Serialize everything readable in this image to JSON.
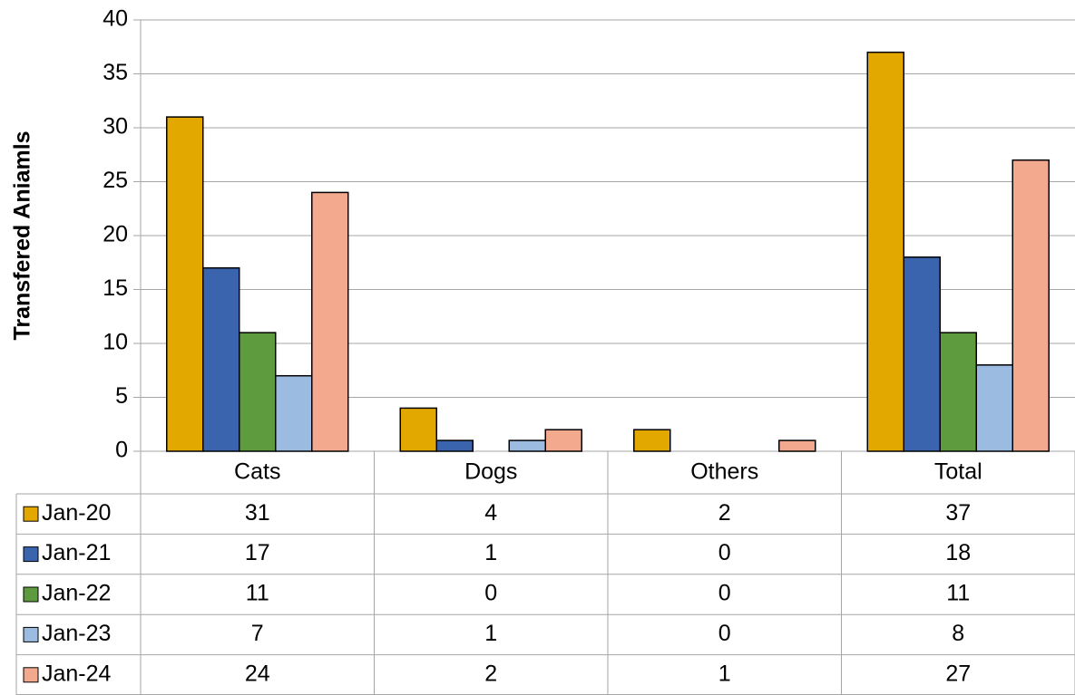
{
  "chart_data": {
    "type": "bar",
    "y_axis_label": "Transfered Aniamls",
    "categories": [
      "Cats",
      "Dogs",
      "Others",
      "Total"
    ],
    "series": [
      {
        "name": "Jan-20",
        "color": "#e3a800",
        "values": [
          31,
          4,
          2,
          37
        ]
      },
      {
        "name": "Jan-21",
        "color": "#3a64ae",
        "values": [
          17,
          1,
          0,
          18
        ]
      },
      {
        "name": "Jan-22",
        "color": "#5e9a3e",
        "values": [
          11,
          0,
          0,
          11
        ]
      },
      {
        "name": "Jan-23",
        "color": "#9bbbe0",
        "values": [
          7,
          1,
          0,
          8
        ]
      },
      {
        "name": "Jan-24",
        "color": "#f2a98d",
        "values": [
          24,
          2,
          1,
          27
        ]
      }
    ],
    "ylim": [
      0,
      40
    ],
    "yticks": [
      0,
      5,
      10,
      15,
      20,
      25,
      30,
      35,
      40
    ],
    "grid": true
  }
}
